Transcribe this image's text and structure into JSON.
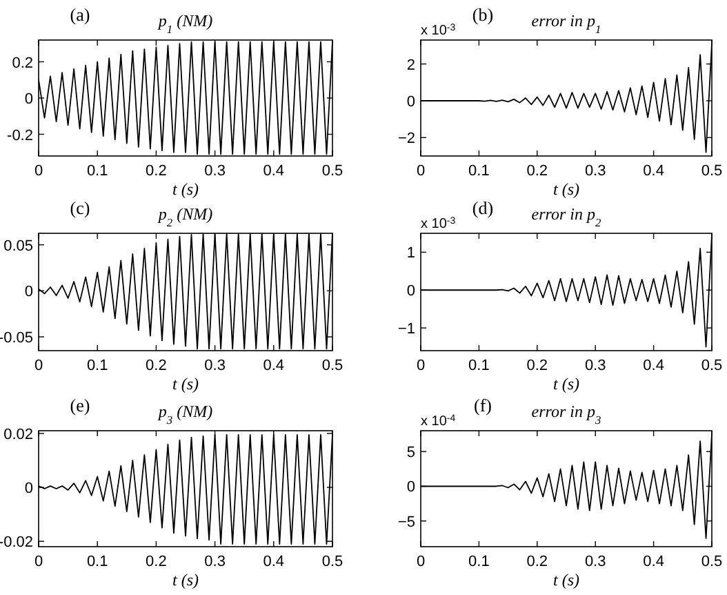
{
  "chart_data": [
    {
      "type": "line",
      "title": "p$_{1}$ (NM)",
      "xlabel": "t (s)",
      "annotations": [
        "(a)"
      ],
      "xlim": [
        0,
        0.5
      ],
      "xticks": [
        0,
        0.1,
        0.2,
        0.3,
        0.4,
        0.5
      ],
      "ylim": [
        -0.32,
        0.32
      ],
      "yticks": [
        -0.2,
        0,
        0.2
      ],
      "x": [
        0,
        0.01,
        0.02,
        0.03,
        0.04,
        0.05,
        0.06,
        0.07,
        0.08,
        0.09,
        0.1,
        0.11,
        0.12,
        0.13,
        0.14,
        0.15,
        0.16,
        0.17,
        0.18,
        0.19,
        0.2,
        0.21,
        0.22,
        0.23,
        0.24,
        0.25,
        0.26,
        0.27,
        0.28,
        0.29,
        0.3,
        0.31,
        0.32,
        0.33,
        0.34,
        0.35,
        0.36,
        0.37,
        0.38,
        0.39,
        0.4,
        0.41,
        0.42,
        0.43,
        0.44,
        0.45,
        0.46,
        0.47,
        0.48,
        0.49,
        0.5
      ],
      "series": [
        {
          "color": "#000000",
          "values": [
            0.1,
            -0.11,
            0.12,
            -0.13,
            0.14,
            -0.15,
            0.16,
            -0.17,
            0.18,
            -0.19,
            0.2,
            -0.21,
            0.22,
            -0.23,
            0.24,
            -0.25,
            0.26,
            -0.27,
            0.27,
            -0.28,
            0.28,
            -0.29,
            0.29,
            -0.3,
            0.3,
            -0.3,
            0.31,
            -0.31,
            0.31,
            -0.31,
            0.31,
            -0.31,
            0.31,
            -0.31,
            0.31,
            -0.31,
            0.31,
            -0.31,
            0.31,
            -0.31,
            0.31,
            -0.31,
            0.31,
            -0.31,
            0.31,
            -0.31,
            0.31,
            -0.31,
            0.31,
            -0.31,
            0.31
          ]
        }
      ]
    },
    {
      "type": "line",
      "title": "error in p$_{1}$",
      "xlabel": "t (s)",
      "annotations": [
        "(b)",
        "x 10$^{-3}$"
      ],
      "xlim": [
        0,
        0.5
      ],
      "xticks": [
        0,
        0.1,
        0.2,
        0.3,
        0.4,
        0.5
      ],
      "ylim": [
        -3,
        3.3
      ],
      "yticks": [
        {
          "value": -2,
          "label": "−2"
        },
        0,
        2
      ],
      "x": [
        0,
        0.01,
        0.02,
        0.03,
        0.04,
        0.05,
        0.06,
        0.07,
        0.08,
        0.09,
        0.1,
        0.11,
        0.12,
        0.13,
        0.14,
        0.15,
        0.16,
        0.17,
        0.18,
        0.19,
        0.2,
        0.21,
        0.22,
        0.23,
        0.24,
        0.25,
        0.26,
        0.27,
        0.28,
        0.29,
        0.3,
        0.31,
        0.32,
        0.33,
        0.34,
        0.35,
        0.36,
        0.37,
        0.38,
        0.39,
        0.4,
        0.41,
        0.42,
        0.43,
        0.44,
        0.45,
        0.46,
        0.47,
        0.48,
        0.49,
        0.5
      ],
      "series": [
        {
          "color": "#000000",
          "values": [
            0,
            0,
            0,
            0,
            0,
            0,
            0,
            0,
            0,
            0,
            0,
            -0.02,
            0.02,
            -0.03,
            0.03,
            -0.05,
            0.08,
            -0.1,
            0.15,
            -0.2,
            0.2,
            -0.25,
            0.3,
            -0.35,
            0.4,
            -0.4,
            0.45,
            -0.4,
            0.4,
            -0.35,
            0.4,
            -0.45,
            0.5,
            -0.5,
            0.55,
            -0.6,
            0.7,
            -0.75,
            0.8,
            -0.9,
            1.0,
            -1.1,
            1.2,
            -1.3,
            1.4,
            -1.6,
            1.8,
            -2.1,
            2.5,
            -2.8,
            3.1
          ]
        }
      ]
    },
    {
      "type": "line",
      "title": "p$_{2}$ (NM)",
      "xlabel": "t (s)",
      "annotations": [
        "(c)"
      ],
      "xlim": [
        0,
        0.5
      ],
      "xticks": [
        0,
        0.1,
        0.2,
        0.3,
        0.4,
        0.5
      ],
      "ylim": [
        -0.065,
        0.0625
      ],
      "yticks": [
        -0.05,
        0,
        0.05
      ],
      "x": [
        0,
        0.01,
        0.02,
        0.03,
        0.04,
        0.05,
        0.06,
        0.07,
        0.08,
        0.09,
        0.1,
        0.11,
        0.12,
        0.13,
        0.14,
        0.15,
        0.16,
        0.17,
        0.18,
        0.19,
        0.2,
        0.21,
        0.22,
        0.23,
        0.24,
        0.25,
        0.26,
        0.27,
        0.28,
        0.29,
        0.3,
        0.31,
        0.32,
        0.33,
        0.34,
        0.35,
        0.36,
        0.37,
        0.38,
        0.39,
        0.4,
        0.41,
        0.42,
        0.43,
        0.44,
        0.45,
        0.46,
        0.47,
        0.48,
        0.49,
        0.5
      ],
      "series": [
        {
          "color": "#000000",
          "values": [
            0.002,
            -0.003,
            0.004,
            -0.005,
            0.006,
            -0.008,
            0.01,
            -0.012,
            0.015,
            -0.017,
            0.02,
            -0.023,
            0.026,
            -0.03,
            0.033,
            -0.036,
            0.04,
            -0.043,
            0.046,
            -0.049,
            0.052,
            -0.054,
            0.056,
            -0.058,
            0.059,
            -0.06,
            0.061,
            -0.063,
            0.062,
            -0.063,
            0.062,
            -0.063,
            0.062,
            -0.063,
            0.062,
            -0.063,
            0.062,
            -0.063,
            0.062,
            -0.063,
            0.062,
            -0.063,
            0.062,
            -0.063,
            0.062,
            -0.063,
            0.062,
            -0.063,
            0.062,
            -0.063,
            0.062
          ]
        }
      ]
    },
    {
      "type": "line",
      "title": "error in p$_{2}$",
      "xlabel": "t (s)",
      "annotations": [
        "(d)",
        "x 10$^{-3}$"
      ],
      "xlim": [
        0,
        0.5
      ],
      "xticks": [
        0,
        0.1,
        0.2,
        0.3,
        0.4,
        0.5
      ],
      "ylim": [
        -1.6,
        1.5
      ],
      "yticks": [
        {
          "value": -1,
          "label": "−1"
        },
        0,
        1
      ],
      "x": [
        0,
        0.01,
        0.02,
        0.03,
        0.04,
        0.05,
        0.06,
        0.07,
        0.08,
        0.09,
        0.1,
        0.11,
        0.12,
        0.13,
        0.14,
        0.15,
        0.16,
        0.17,
        0.18,
        0.19,
        0.2,
        0.21,
        0.22,
        0.23,
        0.24,
        0.25,
        0.26,
        0.27,
        0.28,
        0.29,
        0.3,
        0.31,
        0.32,
        0.33,
        0.34,
        0.35,
        0.36,
        0.37,
        0.38,
        0.39,
        0.4,
        0.41,
        0.42,
        0.43,
        0.44,
        0.45,
        0.46,
        0.47,
        0.48,
        0.49,
        0.5
      ],
      "series": [
        {
          "color": "#000000",
          "values": [
            0,
            0,
            0,
            0,
            0,
            0,
            0,
            0,
            0,
            0,
            0,
            0,
            0,
            0,
            0.01,
            -0.02,
            0.05,
            -0.08,
            0.1,
            -0.15,
            0.18,
            -0.2,
            0.25,
            -0.28,
            0.3,
            -0.3,
            0.3,
            -0.28,
            0.3,
            -0.33,
            0.35,
            -0.38,
            0.4,
            -0.4,
            0.38,
            -0.35,
            0.3,
            -0.28,
            0.28,
            -0.3,
            0.3,
            -0.35,
            0.4,
            -0.45,
            0.5,
            -0.6,
            0.75,
            -0.9,
            1.1,
            -1.5,
            1.45
          ]
        }
      ]
    },
    {
      "type": "line",
      "title": "p$_{3}$ (NM)",
      "xlabel": "t (s)",
      "annotations": [
        "(e)"
      ],
      "xlim": [
        0,
        0.5
      ],
      "xticks": [
        0,
        0.1,
        0.2,
        0.3,
        0.4,
        0.5
      ],
      "ylim": [
        -0.022,
        0.021
      ],
      "yticks": [
        -0.02,
        0,
        0.02
      ],
      "x": [
        0,
        0.01,
        0.02,
        0.03,
        0.04,
        0.05,
        0.06,
        0.07,
        0.08,
        0.09,
        0.1,
        0.11,
        0.12,
        0.13,
        0.14,
        0.15,
        0.16,
        0.17,
        0.18,
        0.19,
        0.2,
        0.21,
        0.22,
        0.23,
        0.24,
        0.25,
        0.26,
        0.27,
        0.28,
        0.29,
        0.3,
        0.31,
        0.32,
        0.33,
        0.34,
        0.35,
        0.36,
        0.37,
        0.38,
        0.39,
        0.4,
        0.41,
        0.42,
        0.43,
        0.44,
        0.45,
        0.46,
        0.47,
        0.48,
        0.49,
        0.5
      ],
      "series": [
        {
          "color": "#000000",
          "values": [
            0.0005,
            -0.0005,
            0.0005,
            -0.0005,
            0.0005,
            -0.001,
            0.0015,
            -0.002,
            0.0025,
            -0.003,
            0.004,
            -0.005,
            0.006,
            -0.007,
            0.008,
            -0.009,
            0.01,
            -0.011,
            0.012,
            -0.013,
            0.014,
            -0.015,
            0.016,
            -0.017,
            0.0175,
            -0.018,
            0.0185,
            -0.019,
            0.019,
            -0.0195,
            0.0195,
            -0.021,
            0.0195,
            -0.021,
            0.0195,
            -0.021,
            0.0195,
            -0.021,
            0.0195,
            -0.021,
            0.0195,
            -0.021,
            0.0195,
            -0.021,
            0.0195,
            -0.021,
            0.0195,
            -0.021,
            0.0195,
            -0.021,
            0.0195
          ]
        }
      ]
    },
    {
      "type": "line",
      "title": "error in p$_{3}$",
      "xlabel": "t (s)",
      "annotations": [
        "(f)",
        "x 10$^{-4}$"
      ],
      "xlim": [
        0,
        0.5
      ],
      "xticks": [
        0,
        0.1,
        0.2,
        0.3,
        0.4,
        0.5
      ],
      "ylim": [
        -8.7,
        8
      ],
      "yticks": [
        {
          "value": -5,
          "label": "−5"
        },
        0,
        5
      ],
      "x": [
        0,
        0.01,
        0.02,
        0.03,
        0.04,
        0.05,
        0.06,
        0.07,
        0.08,
        0.09,
        0.1,
        0.11,
        0.12,
        0.13,
        0.14,
        0.15,
        0.16,
        0.17,
        0.18,
        0.19,
        0.2,
        0.21,
        0.22,
        0.23,
        0.24,
        0.25,
        0.26,
        0.27,
        0.28,
        0.29,
        0.3,
        0.31,
        0.32,
        0.33,
        0.34,
        0.35,
        0.36,
        0.37,
        0.38,
        0.39,
        0.4,
        0.41,
        0.42,
        0.43,
        0.44,
        0.45,
        0.46,
        0.47,
        0.48,
        0.49,
        0.5
      ],
      "series": [
        {
          "color": "#000000",
          "values": [
            0,
            0,
            0,
            0,
            0,
            0,
            0,
            0,
            0,
            0,
            0,
            0,
            0,
            0,
            0.1,
            -0.2,
            0.3,
            -0.5,
            0.7,
            -1.0,
            1.2,
            -1.5,
            1.8,
            -2.2,
            2.5,
            -2.8,
            3.0,
            -3.3,
            3.5,
            -3.5,
            3.5,
            -3.3,
            3.0,
            -2.8,
            2.6,
            -2.5,
            2.2,
            -2.0,
            2.0,
            -2.2,
            2.3,
            -2.5,
            2.5,
            -2.8,
            3.0,
            -3.5,
            4.5,
            -5.5,
            6.5,
            -7.5,
            7.5
          ]
        }
      ]
    }
  ]
}
